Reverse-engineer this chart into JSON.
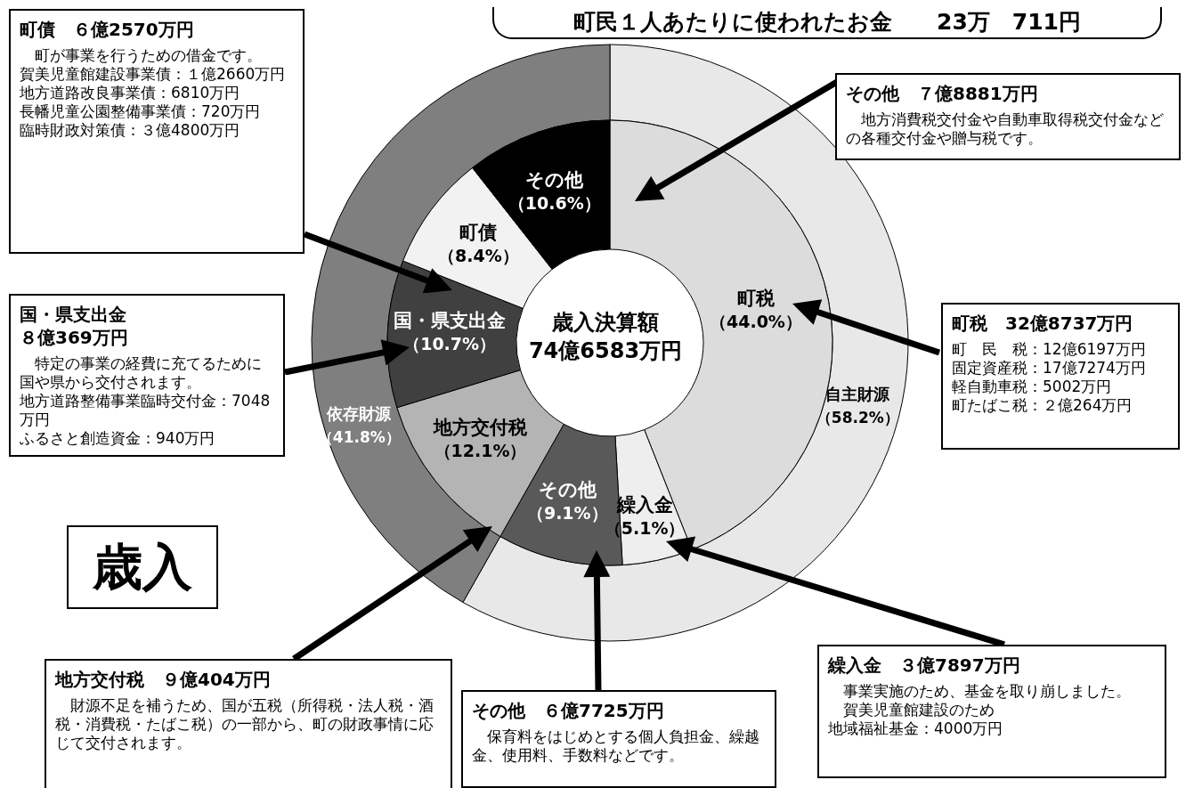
{
  "chart_data": [
    {
      "type": "donut",
      "title": "町民１人あたりに使われたお金　　23万　711円",
      "categories": [
        "町税",
        "繰入金",
        "その他",
        "地方交付税",
        "国・県支出金",
        "町債",
        "その他"
      ],
      "values": [
        44.0,
        5.1,
        9.1,
        12.1,
        10.7,
        8.4,
        10.6
      ],
      "colors": [
        "#dcdcdc",
        "#eeeeee",
        "#595959",
        "#b4b4b4",
        "#404040",
        "#f2f2f2",
        "#000000"
      ],
      "value_labels": [
        "（44.0%）",
        "（5.1%）",
        "（9.1%）",
        "（12.1%）",
        "（10.7%）",
        "（8.4%）",
        "（10.6%）"
      ],
      "annotations": [
        "歳入決算額",
        "74億6583万円",
        "歳入",
        "町債　６億2570万円",
        "　町が事業を行うための借金です。",
        "賀美児童館建設事業債：１億2660万円",
        "地方道路改良事業債：6810万円",
        "長幡児童公園整備事業債：720万円",
        "臨時財政対策債：３億4800万円",
        "その他　７億8881万円",
        "　地方消費税交付金や自動車取得税交付金などの各種交付金や贈与税です。",
        "国・県支出金",
        "８億369万円",
        "　特定の事業の経費に充てるために国や県から交付されます。",
        "地方道路整備事業臨時交付金：7048万円",
        "ふるさと創造資金：940万円",
        "町税　32億8737万円",
        "町　民　税：12億6197万円",
        "固定資産税：17億7274万円",
        "軽自動車税：5002万円",
        "町たばこ税：２億264万円",
        "地方交付税　９億404万円",
        "　財源不足を補うため、国が五税（所得税・法人税・酒税・消費税・たばこ税）の一部から、町の財政事情に応じて交付されます。",
        "その他　６億7725万円",
        "　保育料をはじめとする個人負担金、繰越金、使用料、手数料などです。",
        "繰入金　３億7897万円",
        "　事業実施のため、基金を取り崩しました。",
        "　賀美児童館建設のため",
        "地域福祉基金：4000万円"
      ]
    },
    {
      "type": "donut",
      "categories": [
        "自主財源",
        "依存財源"
      ],
      "values": [
        58.2,
        41.8
      ],
      "colors": [
        "#e8e8e8",
        "#7f7f7f"
      ],
      "value_labels": [
        "（58.2%）",
        "（41.8%）"
      ]
    }
  ]
}
